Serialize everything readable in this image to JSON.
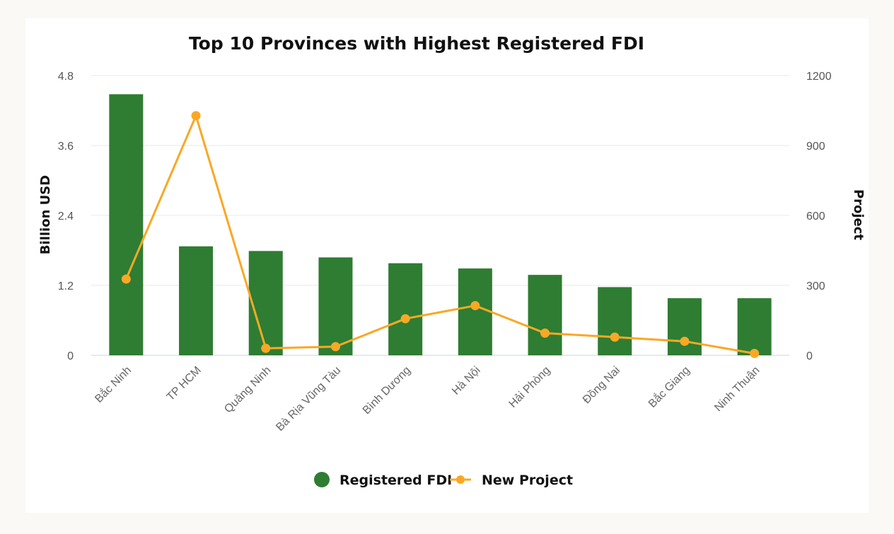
{
  "chart_data": {
    "type": "bar",
    "title": "Top 10 Provinces with Highest Registered FDI",
    "categories": [
      "Bắc Ninh",
      "TP HCM",
      "Quảng Ninh",
      "Bà Rịa Vũng Tàu",
      "Bình Dương",
      "Hà Nội",
      "Hải Phòng",
      "Đồng Nai",
      "Bắc Giang",
      "Ninh Thuận"
    ],
    "series": [
      {
        "name": "Registered FDI",
        "type": "bar",
        "axis": "left",
        "color": "#2e7d32",
        "values": [
          4.48,
          1.87,
          1.79,
          1.68,
          1.58,
          1.49,
          1.38,
          1.17,
          0.98,
          0.98
        ]
      },
      {
        "name": "New Project",
        "type": "line",
        "axis": "right",
        "color": "#f9a825",
        "values": [
          327,
          1028,
          30,
          37,
          157,
          213,
          95,
          78,
          60,
          8
        ]
      }
    ],
    "ylabel": "Billion USD",
    "ylim": [
      0,
      4.8
    ],
    "yticks": [
      "0",
      "1.2",
      "2.4",
      "3.6",
      "4.8"
    ],
    "y2label": "Project",
    "y2lim": [
      0,
      1200
    ],
    "y2ticks": [
      "0",
      "300",
      "600",
      "900",
      "1200"
    ],
    "grid": true,
    "legend": "bottom"
  }
}
